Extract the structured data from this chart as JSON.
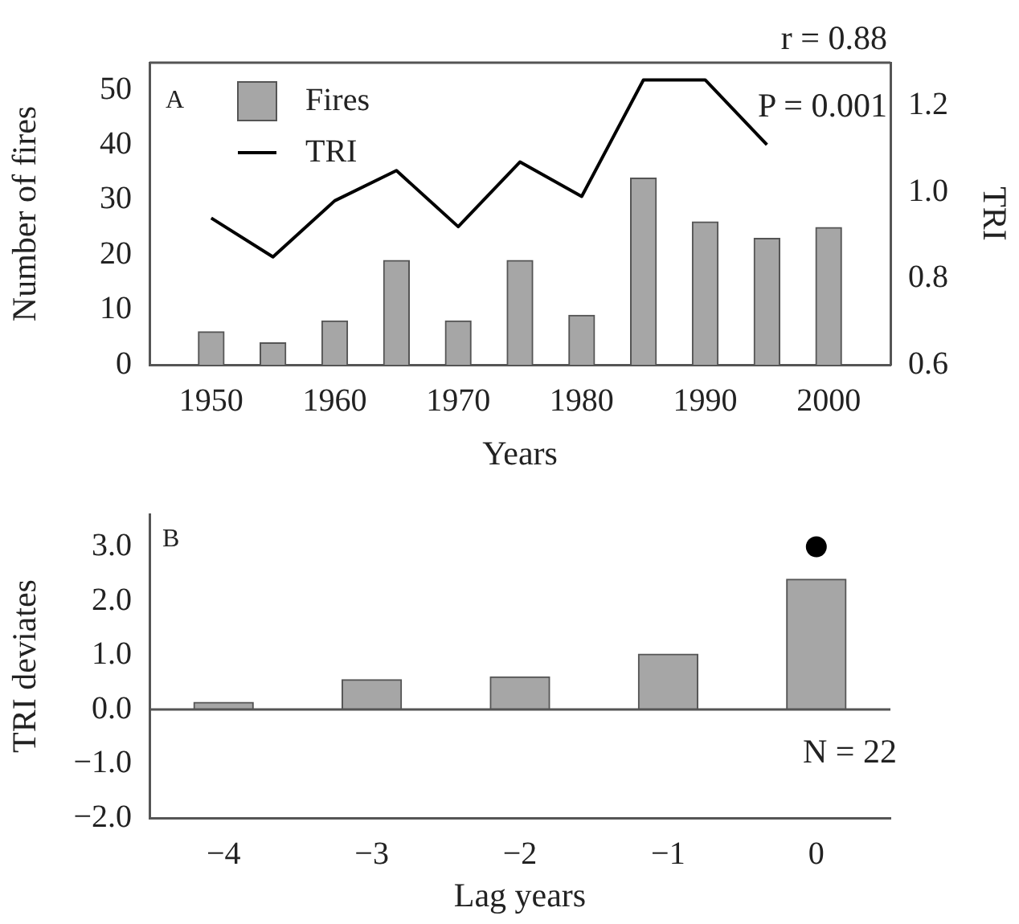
{
  "chart_data": [
    {
      "type": "bar",
      "xlabel": "Years",
      "ylabel": "Number of fires",
      "y2label": "TRI",
      "x": [
        1950,
        1955,
        1960,
        1965,
        1970,
        1975,
        1980,
        1985,
        1990,
        1995,
        2000
      ],
      "series": [
        {
          "name": "Fires",
          "color": "#a6a6a6",
          "values": [
            6,
            4,
            8,
            19,
            8,
            19,
            9,
            34,
            26,
            23,
            25
          ]
        },
        {
          "name": "TRI",
          "type": "line",
          "axis": "y2",
          "color": "#000000",
          "x": [
            1950,
            1955,
            1960,
            1965,
            1970,
            1975,
            1980,
            1985,
            1990,
            1995
          ],
          "values": [
            0.94,
            0.85,
            0.98,
            1.05,
            0.92,
            1.07,
            0.99,
            1.26,
            1.26,
            1.11
          ]
        }
      ],
      "xlim": [
        1945,
        2005
      ],
      "xticks": [
        1950,
        1960,
        1970,
        1980,
        1990,
        2000
      ],
      "ylim": [
        0,
        55
      ],
      "yticks": [
        0,
        10,
        20,
        30,
        40,
        50
      ],
      "y2lim": [
        0.6,
        1.3
      ],
      "y2ticks": [
        {
          "value": 0.6,
          "label": "0.6"
        },
        {
          "value": 0.8,
          "label": "0.8"
        },
        {
          "value": 1.0,
          "label": "1.0"
        },
        {
          "value": 1.2,
          "label": "1.2"
        }
      ],
      "legend": "top left",
      "grid": false,
      "marker": "none",
      "annotations": [
        "A",
        "r = 0.88",
        "P = 0.001"
      ]
    },
    {
      "type": "bar",
      "xlabel": "Lag years",
      "ylabel": "TRI deviates",
      "categories": [
        "−4",
        "−3",
        "−2",
        "−1",
        "0"
      ],
      "series": [
        {
          "color": "#a6a6a6",
          "values": [
            0.13,
            0.55,
            0.6,
            1.02,
            2.4
          ]
        },
        {
          "type": "scatter",
          "color": "#000000",
          "x": [
            "0"
          ],
          "values": [
            3.0
          ]
        }
      ],
      "ylim": [
        -2,
        3.6
      ],
      "yticks": [
        {
          "value": -2,
          "label": "−2.0"
        },
        {
          "value": -1,
          "label": "−1.0"
        },
        {
          "value": 0,
          "label": "0.0"
        },
        {
          "value": 1,
          "label": "1.0"
        },
        {
          "value": 2,
          "label": "2.0"
        },
        {
          "value": 3,
          "label": "3.0"
        }
      ],
      "ref_lines": [
        {
          "axis": "y",
          "value": 0,
          "color": "#555555"
        }
      ],
      "grid": false,
      "legend": false,
      "annotations": [
        "B",
        "N = 22"
      ]
    }
  ]
}
